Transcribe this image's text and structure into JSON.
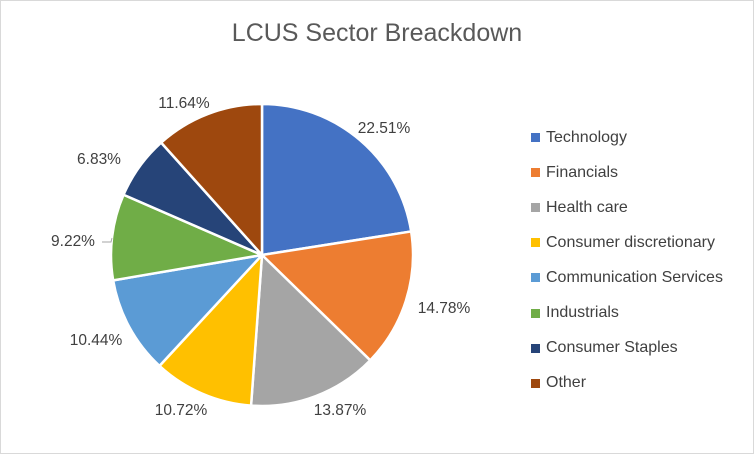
{
  "chart_data": {
    "type": "pie",
    "title": "LCUS Sector Breackdown",
    "categories": [
      "Technology",
      "Financials",
      "Health care",
      "Consumer discretionary",
      "Communication Services",
      "Industrials",
      "Consumer Staples",
      "Other"
    ],
    "values": [
      22.51,
      14.78,
      13.87,
      10.72,
      10.44,
      9.22,
      6.83,
      11.64
    ],
    "data_labels": [
      "22.51%",
      "14.78%",
      "13.87%",
      "10.72%",
      "10.44%",
      "9.22%",
      "6.83%",
      "11.64%"
    ],
    "colors": [
      "#4472C4",
      "#ED7D31",
      "#A5A5A5",
      "#FFC000",
      "#5B9BD5",
      "#70AD47",
      "#264478",
      "#9E480E"
    ],
    "legend_position": "right",
    "start_angle": "12 o'clock, clockwise"
  }
}
